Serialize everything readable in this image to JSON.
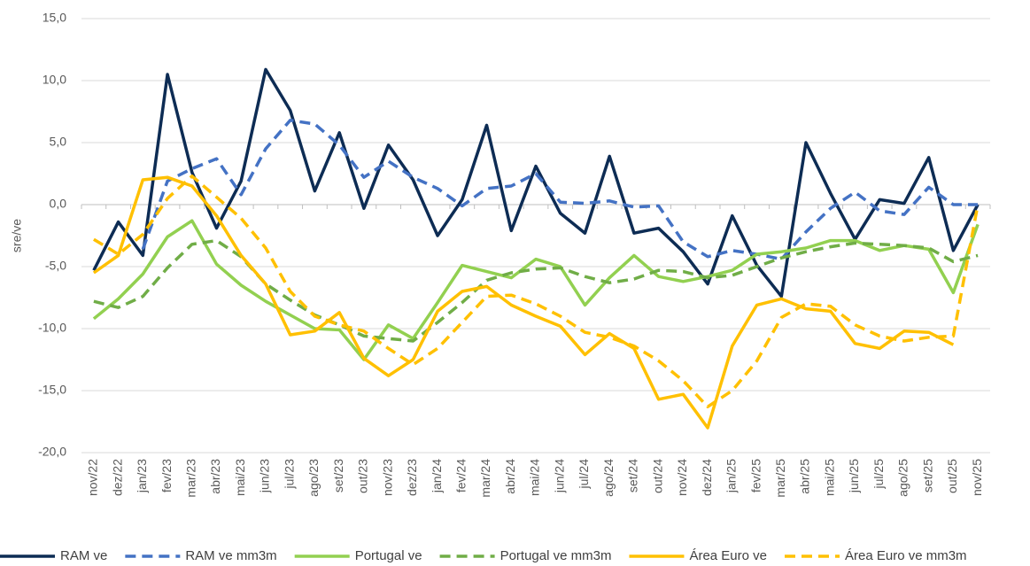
{
  "chart_data": {
    "type": "line",
    "y_label": "sre/ve",
    "categories": [
      "nov/22",
      "dez/22",
      "jan/23",
      "fev/23",
      "mar/23",
      "abr/23",
      "mai/23",
      "jun/23",
      "jul/23",
      "ago/23",
      "set/23",
      "out/23",
      "nov/23",
      "dez/23",
      "jan/24",
      "fev/24",
      "mar/24",
      "abr/24",
      "mai/24",
      "jun/24",
      "jul/24",
      "ago/24",
      "set/24",
      "out/24",
      "nov/24",
      "dez/24",
      "jan/25",
      "fev/25",
      "mar/25",
      "abr/25",
      "mai/25",
      "jun/25",
      "jul/25",
      "ago/25",
      "set/25",
      "out/25",
      "nov/25"
    ],
    "ylim": [
      -20,
      15
    ],
    "yticks": [
      {
        "value": -20,
        "label": "-20,0"
      },
      {
        "value": -15,
        "label": "-15,0"
      },
      {
        "value": -10,
        "label": "-10,0"
      },
      {
        "value": -5,
        "label": "-5,0"
      },
      {
        "value": 0,
        "label": "0,0"
      },
      {
        "value": 5,
        "label": "5,0"
      },
      {
        "value": 10,
        "label": "10,0"
      },
      {
        "value": 15,
        "label": "15,0"
      }
    ],
    "grid": true,
    "legend": "bottom",
    "series": [
      {
        "name": "RAM ve",
        "color": "#0d2c54",
        "dashed": false,
        "values": [
          -5.3,
          -1.4,
          -4.1,
          10.5,
          2.6,
          -1.9,
          1.9,
          10.9,
          7.6,
          1.1,
          5.8,
          -0.3,
          4.8,
          2.0,
          -2.5,
          0.4,
          6.4,
          -2.1,
          3.1,
          -0.7,
          -2.3,
          3.9,
          -2.3,
          -1.9,
          -3.8,
          -6.4,
          -0.9,
          -4.9,
          -7.4,
          5.0,
          0.9,
          -2.8,
          0.4,
          0.1,
          3.8,
          -3.7,
          0.0
        ]
      },
      {
        "name": "RAM ve mm3m",
        "color": "#4472c4",
        "dashed": true,
        "values": [
          null,
          null,
          -3.6,
          1.9,
          2.9,
          3.7,
          0.8,
          4.5,
          6.8,
          6.5,
          4.8,
          2.2,
          3.5,
          2.2,
          1.3,
          -0.1,
          1.3,
          1.5,
          2.5,
          0.2,
          0.1,
          0.3,
          -0.2,
          -0.1,
          -3.0,
          -4.2,
          -3.7,
          -4.0,
          -4.4,
          -2.2,
          -0.3,
          1.0,
          -0.5,
          -0.8,
          1.4,
          0.0,
          0.0
        ]
      },
      {
        "name": "Portugal ve",
        "color": "#92d050",
        "dashed": false,
        "values": [
          -9.2,
          -7.6,
          -5.6,
          -2.6,
          -1.3,
          -4.8,
          -6.5,
          -7.8,
          -8.9,
          -10.0,
          -10.1,
          -12.5,
          -9.7,
          -10.8,
          -7.9,
          -4.9,
          -5.4,
          -5.9,
          -4.4,
          -5.0,
          -8.1,
          -5.9,
          -4.1,
          -5.8,
          -6.2,
          -5.8,
          -5.3,
          -4.0,
          -3.8,
          -3.5,
          -2.9,
          -2.9,
          -3.7,
          -3.3,
          -3.6,
          -7.1,
          -1.6
        ]
      },
      {
        "name": "Portugal ve mm3m",
        "color": "#70ad47",
        "dashed": true,
        "values": [
          -7.8,
          -8.3,
          -7.4,
          -5.1,
          -3.2,
          -2.9,
          -4.2,
          -6.4,
          -7.7,
          -8.9,
          -9.7,
          -10.6,
          -10.8,
          -11.0,
          -9.5,
          -7.9,
          -6.1,
          -5.5,
          -5.2,
          -5.1,
          -5.8,
          -6.3,
          -6.0,
          -5.3,
          -5.4,
          -5.9,
          -5.7,
          -5.0,
          -4.3,
          -3.8,
          -3.4,
          -3.1,
          -3.2,
          -3.3,
          -3.5,
          -4.6,
          -4.1
        ]
      },
      {
        "name": "Área Euro ve",
        "color": "#ffc000",
        "dashed": false,
        "values": [
          -5.5,
          -4.1,
          2.0,
          2.2,
          1.5,
          -0.9,
          -4.1,
          -6.4,
          -10.5,
          -10.2,
          -8.7,
          -12.4,
          -13.8,
          -12.5,
          -8.6,
          -7.0,
          -6.6,
          -8.1,
          -9.0,
          -9.8,
          -12.1,
          -10.4,
          -11.6,
          -15.7,
          -15.3,
          -18.0,
          -11.4,
          -8.1,
          -7.6,
          -8.4,
          -8.6,
          -11.2,
          -11.6,
          -10.2,
          -10.3,
          -11.3,
          null
        ]
      },
      {
        "name": "Área Euro ve mm3m",
        "color": "#ffc000",
        "dashed": true,
        "values": [
          -2.8,
          -4.0,
          -2.4,
          0.5,
          2.3,
          0.6,
          -1.1,
          -3.5,
          -7.0,
          -9.0,
          -9.7,
          -10.2,
          -11.6,
          -12.9,
          -11.6,
          -9.5,
          -7.4,
          -7.3,
          -8.0,
          -9.0,
          -10.3,
          -10.7,
          -11.4,
          -12.6,
          -14.2,
          -16.3,
          -15.0,
          -12.6,
          -9.1,
          -8.0,
          -8.2,
          -9.7,
          -10.6,
          -11.0,
          -10.7,
          -10.6,
          0.0
        ]
      }
    ]
  }
}
